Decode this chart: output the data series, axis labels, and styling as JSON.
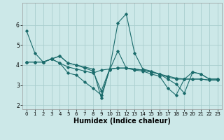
{
  "background_color": "#cce8e8",
  "grid_color": "#aacece",
  "line_color": "#1a6b6b",
  "xlabel": "Humidex (Indice chaleur)",
  "xlabel_fontsize": 7,
  "xlim": [
    -0.5,
    23.5
  ],
  "ylim": [
    1.8,
    7.1
  ],
  "yticks": [
    2,
    3,
    4,
    5,
    6
  ],
  "xticks": [
    0,
    1,
    2,
    3,
    4,
    5,
    6,
    7,
    8,
    9,
    10,
    11,
    12,
    13,
    14,
    15,
    16,
    17,
    18,
    19,
    20,
    21,
    22,
    23
  ],
  "lines": [
    {
      "x": [
        0,
        1,
        2,
        3,
        4,
        5,
        6,
        7,
        8,
        9,
        10,
        11,
        12,
        13,
        14,
        15,
        16,
        17,
        18,
        19,
        20,
        21,
        22,
        23
      ],
      "y": [
        5.7,
        4.6,
        4.15,
        4.3,
        4.1,
        3.6,
        3.5,
        3.15,
        2.85,
        2.5,
        3.75,
        4.7,
        3.85,
        3.8,
        3.75,
        3.65,
        3.55,
        3.4,
        3.3,
        3.3,
        3.3,
        3.3,
        3.25,
        3.25
      ]
    },
    {
      "x": [
        0,
        1,
        2,
        3,
        4,
        5,
        6,
        7,
        8,
        9,
        10,
        11,
        12,
        13,
        14,
        15,
        16,
        17,
        18,
        19,
        20,
        21,
        22,
        23
      ],
      "y": [
        4.15,
        4.15,
        4.15,
        4.3,
        4.45,
        4.1,
        4.0,
        3.9,
        3.8,
        2.35,
        3.8,
        6.1,
        6.55,
        4.6,
        3.8,
        3.7,
        3.55,
        3.3,
        3.05,
        2.6,
        3.65,
        3.55,
        3.3,
        3.3
      ]
    },
    {
      "x": [
        0,
        1,
        2,
        3,
        4,
        5,
        6,
        7,
        8,
        9,
        10,
        11,
        12,
        13,
        14,
        15,
        16,
        17,
        18,
        19,
        20,
        21,
        22,
        23
      ],
      "y": [
        4.15,
        4.15,
        4.15,
        4.3,
        4.1,
        3.9,
        3.8,
        3.7,
        3.6,
        3.75,
        3.8,
        3.85,
        3.85,
        3.8,
        3.75,
        3.65,
        3.55,
        3.45,
        3.35,
        3.3,
        3.3,
        3.3,
        3.25,
        3.25
      ]
    },
    {
      "x": [
        0,
        1,
        2,
        3,
        4,
        5,
        6,
        7,
        8,
        9,
        10,
        11,
        12,
        13,
        14,
        15,
        16,
        17,
        18,
        19,
        20,
        21,
        22,
        23
      ],
      "y": [
        4.15,
        4.15,
        4.15,
        4.3,
        4.45,
        4.1,
        4.0,
        3.85,
        3.7,
        2.7,
        3.8,
        3.85,
        3.85,
        3.75,
        3.7,
        3.55,
        3.45,
        2.85,
        2.5,
        3.3,
        3.65,
        3.55,
        3.3,
        3.3
      ]
    }
  ]
}
